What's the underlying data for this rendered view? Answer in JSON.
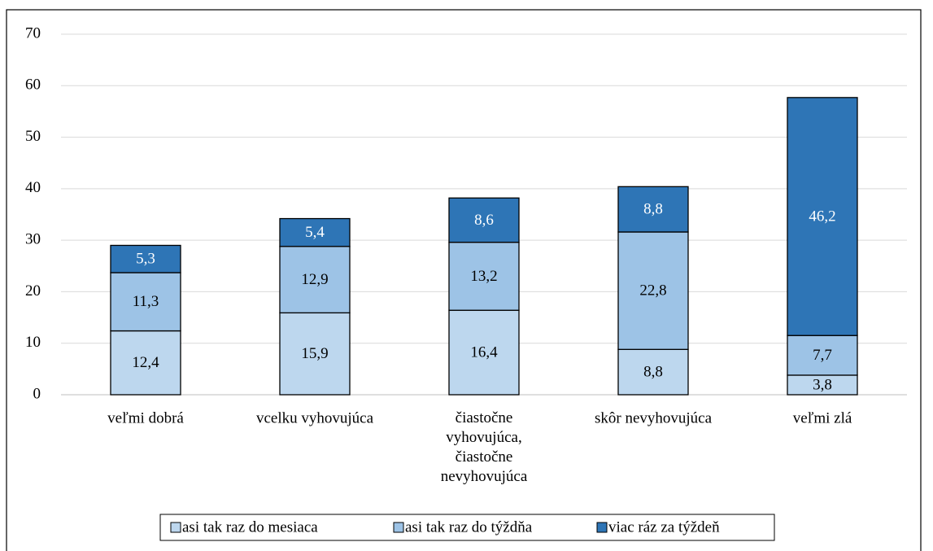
{
  "chart_data": {
    "type": "stacked_bar",
    "categories": [
      "veľmi dobrá",
      "vcelku vyhovujúca",
      "čiastočne\nvyhovujúca,\nčiastočne\nnevyhovujúca",
      "skôr nevyhovujúca",
      "veľmi zlá"
    ],
    "series": [
      {
        "name": "asi tak raz do mesiaca",
        "color": "#bdd7ee",
        "values": [
          12.4,
          15.9,
          16.4,
          8.8,
          3.8
        ],
        "value_labels": [
          "12,4",
          "15,9",
          "16,4",
          "8,8",
          "3,8"
        ]
      },
      {
        "name": "asi tak raz do týždňa",
        "color": "#9dc3e6",
        "values": [
          11.3,
          12.9,
          13.2,
          22.8,
          7.7
        ],
        "value_labels": [
          "11,3",
          "12,9",
          "13,2",
          "22,8",
          "7,7"
        ]
      },
      {
        "name": "viac ráz za týždeň",
        "color": "#2e75b6",
        "values": [
          5.3,
          5.4,
          8.6,
          8.8,
          46.2
        ],
        "value_labels": [
          "5,3",
          "5,4",
          "8,6",
          "8,8",
          "46,2"
        ]
      }
    ],
    "ylim": [
      0,
      70
    ],
    "yticks": [
      0,
      10,
      20,
      30,
      40,
      50,
      60,
      70
    ],
    "grid": true,
    "legend": "bottom"
  }
}
